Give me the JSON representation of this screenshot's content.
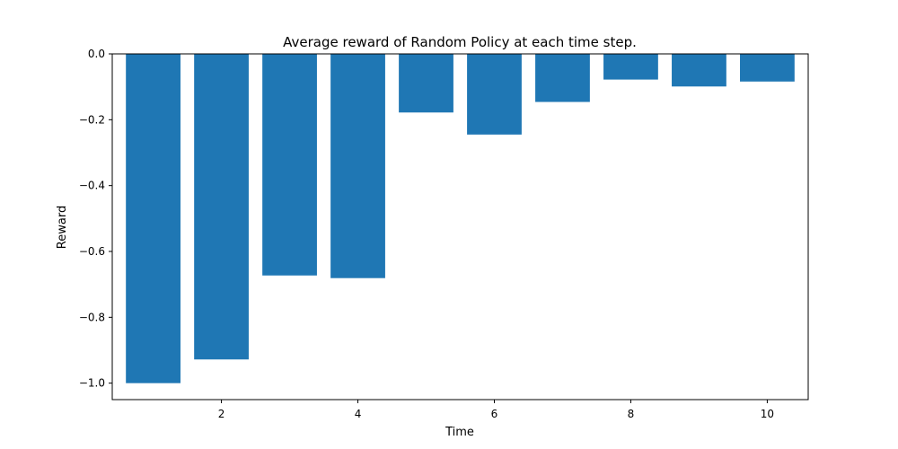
{
  "chart_data": {
    "type": "bar",
    "title": "Average reward of Random Policy at each time step.",
    "xlabel": "Time",
    "ylabel": "Reward",
    "x": [
      1,
      2,
      3,
      4,
      5,
      6,
      7,
      8,
      9,
      10
    ],
    "values": [
      -1.0,
      -0.928,
      -0.673,
      -0.681,
      -0.178,
      -0.245,
      -0.146,
      -0.078,
      -0.099,
      -0.084
    ],
    "xlim": [
      0.4,
      10.6
    ],
    "ylim": [
      -1.05,
      0.0
    ],
    "xticks": [
      2,
      4,
      6,
      8,
      10
    ],
    "xtick_labels": [
      "2",
      "4",
      "6",
      "8",
      "10"
    ],
    "yticks": [
      -1.0,
      -0.8,
      -0.6,
      -0.4,
      -0.2,
      0.0
    ],
    "ytick_labels": [
      "−1.0",
      "−0.8",
      "−0.6",
      "−0.4",
      "−0.2",
      "0.0"
    ],
    "bar_color": "#1f77b4",
    "grid": false,
    "legend": "none"
  }
}
